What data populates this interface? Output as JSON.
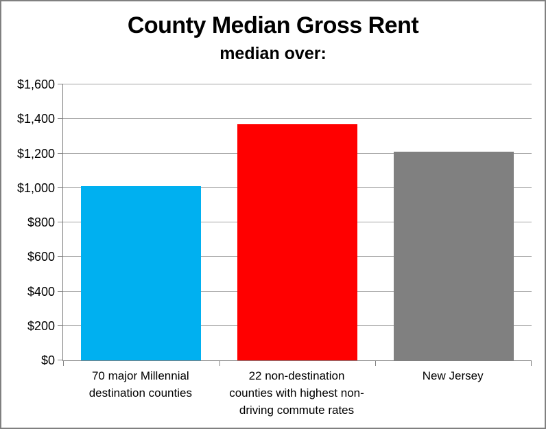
{
  "chart_data": {
    "type": "bar",
    "title": "County Median Gross Rent",
    "subtitle": "median over:",
    "categories": [
      "70 major Millennial destination counties",
      "22 non-destination counties with highest non-driving commute rates",
      "New Jersey"
    ],
    "label_lines": [
      [
        "70 major Millennial",
        "destination counties"
      ],
      [
        "22 non-destination",
        "counties with highest non-",
        "driving commute rates"
      ],
      [
        "New Jersey"
      ]
    ],
    "values": [
      1010,
      1370,
      1210
    ],
    "bar_colors": [
      "#00B0F0",
      "#FF0000",
      "#808080"
    ],
    "ylabel": "",
    "xlabel": "",
    "ylim": [
      0,
      1600
    ],
    "ytick_interval": 200,
    "yticks": [
      {
        "value": 0,
        "label": "$0"
      },
      {
        "value": 200,
        "label": "$200"
      },
      {
        "value": 400,
        "label": "$400"
      },
      {
        "value": 600,
        "label": "$600"
      },
      {
        "value": 800,
        "label": "$800"
      },
      {
        "value": 1000,
        "label": "$1,000"
      },
      {
        "value": 1200,
        "label": "$1,200"
      },
      {
        "value": 1400,
        "label": "$1,400"
      },
      {
        "value": 1600,
        "label": "$1,600"
      }
    ],
    "grid": "horizontal",
    "legend": "none"
  },
  "colors": {
    "gridline": "#a2a2a2",
    "axis": "#808080",
    "frame_border": "#808080",
    "text": "#000000",
    "background": "#ffffff"
  }
}
